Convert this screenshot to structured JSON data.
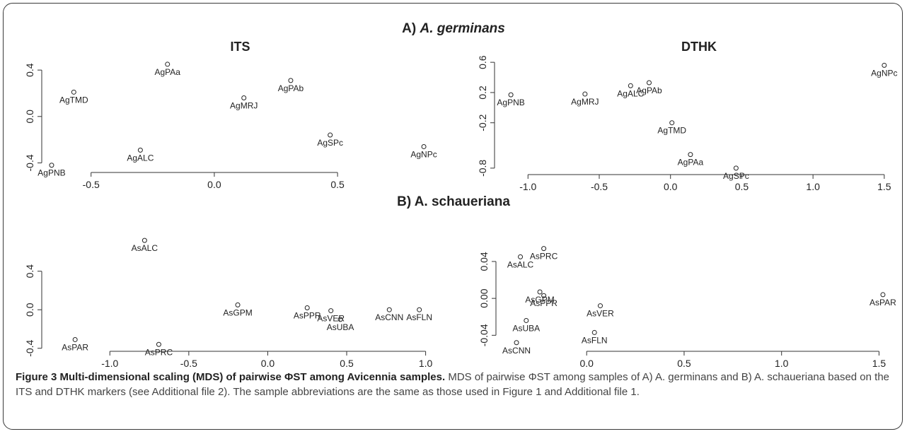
{
  "panels": {
    "a": {
      "label": "A)",
      "species": "A. germinans"
    },
    "b": {
      "label": "B) A. schaueriana"
    }
  },
  "caption": {
    "head": "Figure 3 Multi-dimensional scaling (MDS) of pairwise ΦST among Avicennia samples.",
    "body": " MDS of pairwise ΦST among samples of A) A. germinans and B) A. schaueriana based on the ITS and DTHK markers (see Additional file 2). The sample abbreviations are the same as those used in Figure 1 and Additional file 1."
  },
  "chart_data": [
    {
      "type": "scatter",
      "title": "ITS",
      "xlabel": "",
      "ylabel": "",
      "xlim": [
        -0.68,
        0.89
      ],
      "ylim": [
        -0.44,
        0.48
      ],
      "xticks": [
        -0.5,
        0.0,
        0.5
      ],
      "xtick_labels": [
        "-0.5",
        "0.0",
        "0.5"
      ],
      "yticks": [
        -0.4,
        0.0,
        0.4
      ],
      "ytick_labels": [
        "-0.4",
        "0.0",
        "0.4"
      ],
      "grid": false,
      "points": [
        {
          "label": "AgPAa",
          "x": -0.19,
          "y": 0.45
        },
        {
          "label": "AgPAb",
          "x": 0.31,
          "y": 0.31
        },
        {
          "label": "AgTMD",
          "x": -0.57,
          "y": 0.21
        },
        {
          "label": "AgMRJ",
          "x": 0.12,
          "y": 0.16
        },
        {
          "label": "AgSPc",
          "x": 0.47,
          "y": -0.16
        },
        {
          "label": "AgNPc",
          "x": 0.85,
          "y": -0.26
        },
        {
          "label": "AgALC",
          "x": -0.3,
          "y": -0.29
        },
        {
          "label": "AgPNB",
          "x": -0.66,
          "y": -0.42
        }
      ]
    },
    {
      "type": "scatter",
      "title": "DTHK",
      "xlabel": "",
      "ylabel": "",
      "xlim": [
        -1.2,
        1.6
      ],
      "ylim": [
        -0.82,
        0.62
      ],
      "xticks": [
        -1.0,
        -0.5,
        0.0,
        0.5,
        1.0,
        1.5
      ],
      "xtick_labels": [
        "-1.0",
        "-0.5",
        "0.0",
        "0.5",
        "1.0",
        "1.5"
      ],
      "yticks": [
        -0.8,
        -0.2,
        0.2,
        0.6
      ],
      "ytick_labels": [
        "-0.8",
        "-0.2",
        "0.2",
        "0.6"
      ],
      "grid": false,
      "points": [
        {
          "label": "AgNPc",
          "x": 1.5,
          "y": 0.56
        },
        {
          "label": "AgPAb",
          "x": -0.15,
          "y": 0.33
        },
        {
          "label": "AgALC",
          "x": -0.28,
          "y": 0.29
        },
        {
          "label": "AgPNB",
          "x": -1.12,
          "y": 0.17
        },
        {
          "label": "AgMRJ",
          "x": -0.6,
          "y": 0.18
        },
        {
          "label": "AgTMD",
          "x": 0.01,
          "y": -0.2
        },
        {
          "label": "AgPAa",
          "x": 0.14,
          "y": -0.62
        },
        {
          "label": "AgSPc",
          "x": 0.46,
          "y": -0.8
        }
      ]
    },
    {
      "type": "scatter",
      "title": "",
      "xlabel": "",
      "ylabel": "",
      "xlim": [
        -1.4,
        1.06
      ],
      "ylim": [
        -0.38,
        0.75
      ],
      "xticks": [
        -1.0,
        -0.5,
        0.0,
        0.5,
        1.0
      ],
      "xtick_labels": [
        "-1.0",
        "-0.5",
        "0.0",
        "0.5",
        "1.0"
      ],
      "yticks": [
        -0.4,
        0.0,
        0.4
      ],
      "ytick_labels": [
        "-0.4",
        "0.0",
        "0.4"
      ],
      "grid": false,
      "points": [
        {
          "label": "AsALC",
          "x": -0.78,
          "y": 0.72
        },
        {
          "label": "AsGPM",
          "x": -0.19,
          "y": 0.05
        },
        {
          "label": "AsPPR",
          "x": 0.25,
          "y": 0.02
        },
        {
          "label": "AsVER",
          "x": 0.4,
          "y": -0.01
        },
        {
          "label": "AsUBA",
          "x": 0.46,
          "y": -0.1
        },
        {
          "label": "AsCNN",
          "x": 0.77,
          "y": 0.0
        },
        {
          "label": "AsFLN",
          "x": 0.96,
          "y": 0.0
        },
        {
          "label": "AsPAR",
          "x": -1.22,
          "y": -0.31
        },
        {
          "label": "AsPRC",
          "x": -0.69,
          "y": -0.36
        }
      ]
    },
    {
      "type": "scatter",
      "title": "",
      "xlabel": "",
      "ylabel": "",
      "xlim": [
        -0.44,
        1.6
      ],
      "ylim": [
        -0.052,
        0.066
      ],
      "xticks": [
        0.0,
        0.5,
        1.0,
        1.5
      ],
      "xtick_labels": [
        "0.0",
        "0.5",
        "1.0",
        "1.5"
      ],
      "yticks": [
        -0.04,
        0.0,
        0.04
      ],
      "ytick_labels": [
        "-0.04",
        "0.00",
        "0.04"
      ],
      "grid": false,
      "points": [
        {
          "label": "AsPRC",
          "x": -0.22,
          "y": 0.054
        },
        {
          "label": "AsALC",
          "x": -0.34,
          "y": 0.045
        },
        {
          "label": "AsGPM",
          "x": -0.24,
          "y": 0.007
        },
        {
          "label": "AsPPR",
          "x": -0.22,
          "y": 0.003
        },
        {
          "label": "AsVER",
          "x": 0.07,
          "y": -0.008
        },
        {
          "label": "AsPAR",
          "x": 1.52,
          "y": 0.004
        },
        {
          "label": "AsUBA",
          "x": -0.31,
          "y": -0.024
        },
        {
          "label": "AsFLN",
          "x": 0.04,
          "y": -0.037
        },
        {
          "label": "AsCNN",
          "x": -0.36,
          "y": -0.048
        }
      ]
    }
  ]
}
